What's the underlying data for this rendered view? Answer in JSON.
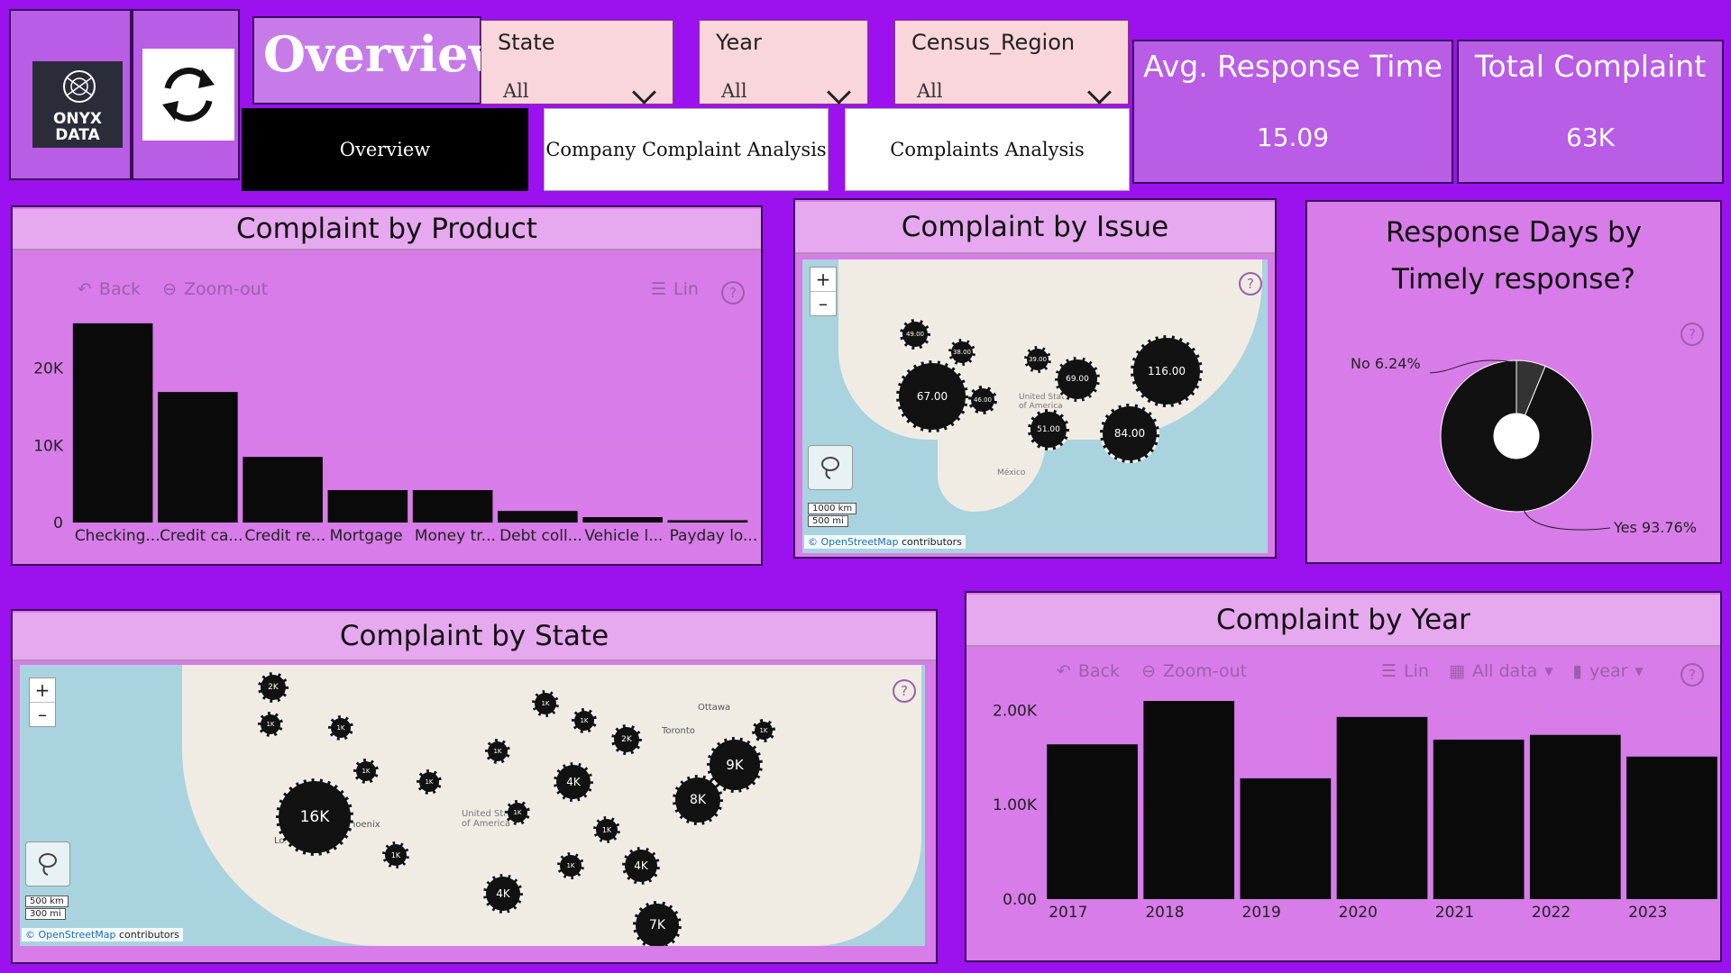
{
  "logo": {
    "line1": "ONYX",
    "line2": "DATA"
  },
  "header": {
    "title": "Overview"
  },
  "slicers": [
    {
      "label": "State",
      "value": "All"
    },
    {
      "label": "Year",
      "value": "All"
    },
    {
      "label": "Census_Region",
      "value": "All"
    }
  ],
  "nav": {
    "overview": "Overview",
    "company": "Company Complaint Analysis",
    "complaints": "Complaints Analysis"
  },
  "kpis": {
    "avg_response": {
      "title": "Avg. Response Time",
      "value": "15.09"
    },
    "total": {
      "title": "Total Complaint",
      "value": "63K"
    }
  },
  "toolbar": {
    "back": "Back",
    "zoomout": "Zoom-out",
    "lin": "Lin",
    "alldata": "All data",
    "year": "year",
    "help": "?"
  },
  "product_chart": {
    "title": "Complaint by Product",
    "chart_data": {
      "type": "bar",
      "categories": [
        "Checking...",
        "Credit ca...",
        "Credit re...",
        "Mortgage",
        "Money tr...",
        "Debt coll...",
        "Vehicle l...",
        "Payday lo..."
      ],
      "values": [
        25800,
        16900,
        8500,
        4200,
        4200,
        1500,
        700,
        300
      ],
      "yticks": [
        "0",
        "10K",
        "20K"
      ],
      "ytick_values": [
        0,
        10000,
        20000
      ],
      "ylim": [
        0,
        28000
      ]
    }
  },
  "issue_map": {
    "title": "Complaint by Issue",
    "bubbles": [
      "67.00",
      "116.00",
      "84.00",
      "69.00",
      "51.00",
      "46.00",
      "49.00",
      "38.00",
      "39.00"
    ],
    "labels": {
      "usa": "United States of America",
      "mexico": "México"
    },
    "scale": {
      "km": "1000 km",
      "mi": "500 mi"
    },
    "attribution": {
      "osm": "© OpenStreetMap",
      "rest": " contributors"
    }
  },
  "timely_chart": {
    "title": "Response Days by Timely response?",
    "chart_data": {
      "type": "pie",
      "slices": [
        {
          "name": "No",
          "percent": 6.24,
          "label": "No 6.24%"
        },
        {
          "name": "Yes",
          "percent": 93.76,
          "label": "Yes 93.76%"
        }
      ]
    }
  },
  "state_map": {
    "title": "Complaint by State",
    "bubbles": [
      "16K",
      "9K",
      "8K",
      "7K",
      "4K",
      "4K",
      "4K",
      "2K",
      "2K",
      "1K",
      "1K",
      "2K",
      "1K",
      "1K",
      "1K",
      "1K",
      "1K",
      "1K",
      "1K",
      "1K",
      "1K",
      "1K",
      "1K",
      "1K",
      "1K",
      "1K",
      "1K"
    ],
    "labels": {
      "ottawa": "Ottawa",
      "toronto": "Toronto",
      "la": "Los Angeles",
      "phoenix": "Phoenix",
      "usa": "United States of America"
    },
    "scale": {
      "km": "500 km",
      "mi": "300 mi"
    },
    "attribution": {
      "osm": "© OpenStreetMap",
      "rest": " contributors"
    }
  },
  "year_chart": {
    "title": "Complaint by Year",
    "chart_data": {
      "type": "bar",
      "categories": [
        "2017",
        "2018",
        "2019",
        "2020",
        "2021",
        "2022",
        "2023"
      ],
      "values": [
        1640,
        2100,
        1280,
        1930,
        1690,
        1740,
        1510
      ],
      "yticks": [
        "0.00",
        "1.00K",
        "2.00K"
      ],
      "ytick_values": [
        0,
        1000,
        2000
      ],
      "ylim": [
        0,
        2100
      ]
    }
  }
}
